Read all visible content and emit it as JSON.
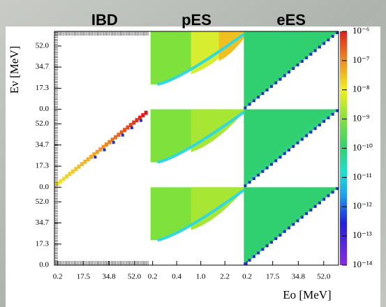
{
  "chart_data": {
    "type": "heatmap",
    "columns": [
      {
        "title": "IBD",
        "xlim": [
          -2,
          62
        ],
        "xticks": [
          0.2,
          17.5,
          34.8,
          {
            "value": 52,
            "label": "52.0"
          }
        ]
      },
      {
        "title": "pES",
        "categories": [
          "0.2",
          "0.4",
          "1.0",
          "2.2"
        ]
      },
      {
        "title": "eES",
        "xlim": [
          -2,
          62
        ],
        "xticks": [
          0.2,
          17.5,
          34.8,
          {
            "value": 52,
            "label": "52.0"
          }
        ]
      }
    ],
    "ylim": [
      0,
      64
    ],
    "rows": [
      {
        "yticks": [
          {
            "value": 0,
            "label": "0.0"
          },
          17.3,
          34.7,
          {
            "value": 52,
            "label": "52.0"
          }
        ]
      },
      {
        "yticks": [
          {
            "value": 0,
            "label": "0.0"
          },
          17.3,
          34.7,
          {
            "value": 52,
            "label": "52.0"
          }
        ]
      },
      {
        "yticks": [
          {
            "value": 0,
            "label": "0.0"
          },
          17.3,
          34.7,
          {
            "value": 52,
            "label": "52.0"
          }
        ]
      }
    ],
    "xlabel": "Eo [MeV]",
    "ylabel": "Eν [MeV]",
    "colorbar": {
      "scale": "log",
      "lim": [
        1e-14,
        1e-06
      ],
      "ticks": [
        {
          "value": 1e-06,
          "label": "10⁻⁶"
        },
        {
          "value": 1e-07,
          "label": "10⁻⁷"
        },
        {
          "value": 1e-08,
          "label": "10⁻⁸"
        },
        {
          "value": 1e-09,
          "label": "10⁻⁹"
        },
        {
          "value": 1e-10,
          "label": "10⁻¹⁰"
        },
        {
          "value": 1e-11,
          "label": "10⁻¹¹"
        },
        {
          "value": 1e-12,
          "label": "10⁻¹²"
        },
        {
          "value": 1e-13,
          "label": "10⁻¹³"
        },
        {
          "value": 1e-14,
          "label": "10⁻¹⁴"
        }
      ]
    }
  }
}
